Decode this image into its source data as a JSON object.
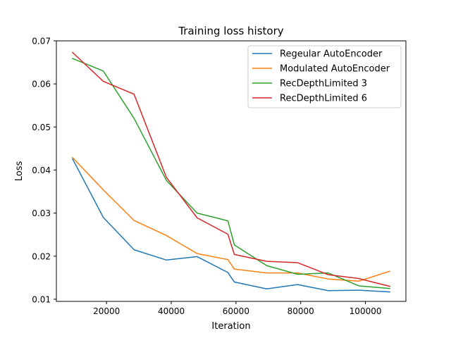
{
  "chart_data": {
    "type": "line",
    "title": "Training loss history",
    "xlabel": "Iteration",
    "ylabel": "Loss",
    "xlim": [
      4500,
      112500
    ],
    "ylim": [
      0.0095,
      0.07
    ],
    "xticks": [
      20000,
      40000,
      60000,
      80000,
      100000
    ],
    "xtick_labels": [
      "20000",
      "40000",
      "60000",
      "80000",
      "100000"
    ],
    "yticks": [
      0.01,
      0.02,
      0.03,
      0.04,
      0.05,
      0.06,
      0.07
    ],
    "ytick_labels": [
      "0.01",
      "0.02",
      "0.03",
      "0.04",
      "0.05",
      "0.06",
      "0.07"
    ],
    "grid": false,
    "legend_position": "top-right",
    "series": [
      {
        "name": "Regeular AutoEncoder",
        "color": "#1f77b4",
        "x": [
          9500,
          19000,
          28500,
          38500,
          48000,
          57500,
          59500,
          69500,
          79000,
          88500,
          98000,
          107500
        ],
        "y": [
          0.0426,
          0.029,
          0.0215,
          0.0191,
          0.0199,
          0.0162,
          0.014,
          0.0124,
          0.0134,
          0.012,
          0.0121,
          0.0117
        ]
      },
      {
        "name": "Modulated AutoEncoder",
        "color": "#ff7f0e",
        "x": [
          9500,
          19000,
          28500,
          38500,
          48000,
          57500,
          59500,
          69500,
          79000,
          88500,
          98000,
          107500
        ],
        "y": [
          0.0429,
          0.0354,
          0.0283,
          0.0248,
          0.0206,
          0.0192,
          0.017,
          0.0161,
          0.0161,
          0.0147,
          0.0142,
          0.0165
        ]
      },
      {
        "name": "RecDepthLimited 3",
        "color": "#2ca02c",
        "x": [
          9500,
          19000,
          28500,
          38500,
          48000,
          57500,
          59500,
          69500,
          79000,
          88500,
          98000,
          107500
        ],
        "y": [
          0.0659,
          0.063,
          0.052,
          0.0376,
          0.03,
          0.0282,
          0.0226,
          0.0178,
          0.0158,
          0.0161,
          0.0131,
          0.0125
        ]
      },
      {
        "name": "RecDepthLimited 6",
        "color": "#d62728",
        "x": [
          9500,
          19000,
          28500,
          38500,
          48000,
          57500,
          59500,
          69500,
          79000,
          88500,
          98000,
          107500
        ],
        "y": [
          0.0673,
          0.0606,
          0.0576,
          0.0383,
          0.0289,
          0.0251,
          0.0204,
          0.0188,
          0.0185,
          0.0157,
          0.0148,
          0.013
        ]
      }
    ]
  }
}
